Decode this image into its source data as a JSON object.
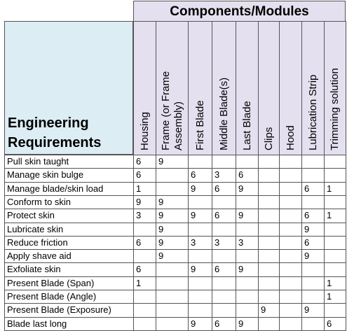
{
  "table": {
    "title": "Components/Modules",
    "row_header": "Engineering Requirements",
    "columns": [
      "Housing",
      "Frame (or Frame Assembly)",
      "First Blade",
      "Middle Blade(s)",
      "Last Blade",
      "Clips",
      "Hood",
      "Lubrication Strip",
      "Trimming solution"
    ],
    "rows": [
      {
        "label": "Pull skin taught",
        "values": [
          6,
          9,
          null,
          null,
          null,
          null,
          null,
          null,
          null
        ]
      },
      {
        "label": "Manage skin bulge",
        "values": [
          6,
          null,
          6,
          3,
          6,
          null,
          null,
          null,
          null
        ]
      },
      {
        "label": "Manage blade/skin load",
        "values": [
          1,
          null,
          9,
          6,
          9,
          null,
          null,
          6,
          1
        ]
      },
      {
        "label": "Conform to skin",
        "values": [
          9,
          9,
          null,
          null,
          null,
          null,
          null,
          null,
          null
        ]
      },
      {
        "label": "Protect skin",
        "values": [
          3,
          9,
          9,
          6,
          9,
          null,
          null,
          6,
          1
        ]
      },
      {
        "label": "Lubricate skin",
        "values": [
          null,
          9,
          null,
          null,
          null,
          null,
          null,
          9,
          null
        ]
      },
      {
        "label": "Reduce friction",
        "values": [
          6,
          9,
          3,
          3,
          3,
          null,
          null,
          6,
          null
        ]
      },
      {
        "label": "Apply shave aid",
        "values": [
          null,
          9,
          null,
          null,
          null,
          null,
          null,
          9,
          null
        ]
      },
      {
        "label": "Exfoliate skin",
        "values": [
          6,
          null,
          9,
          6,
          9,
          null,
          null,
          null,
          null
        ]
      },
      {
        "label": "Present Blade (Span)",
        "values": [
          1,
          null,
          null,
          null,
          null,
          null,
          null,
          null,
          1
        ]
      },
      {
        "label": "Present Blade (Angle)",
        "values": [
          null,
          null,
          null,
          null,
          null,
          null,
          null,
          null,
          1
        ]
      },
      {
        "label": "Present Blade (Exposure)",
        "values": [
          null,
          null,
          null,
          null,
          null,
          9,
          null,
          9,
          null
        ]
      },
      {
        "label": "Blade last long",
        "values": [
          null,
          null,
          9,
          6,
          9,
          null,
          null,
          null,
          6
        ]
      }
    ]
  }
}
